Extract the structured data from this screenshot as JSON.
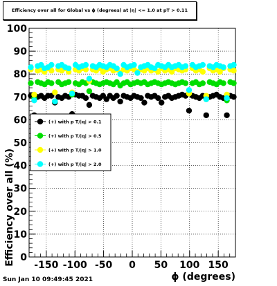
{
  "chart_data": {
    "type": "scatter",
    "title": "Efficiency over all for Global vs ϕ (degrees) at |η| <= 1.0 at pT > 0.11",
    "xlabel": "ϕ (degrees)",
    "ylabel": "Efficiency over all (%)",
    "xlim": [
      -180,
      180
    ],
    "ylim": [
      0,
      100
    ],
    "xticks": [
      "-150",
      "-100",
      "-50",
      "0",
      "50",
      "100",
      "150"
    ],
    "xtick_values": [
      -150,
      -100,
      -50,
      0,
      50,
      100,
      150
    ],
    "yticks": [
      "0",
      "10",
      "20",
      "30",
      "40",
      "50",
      "60",
      "70",
      "80",
      "90",
      "100"
    ],
    "ytick_values": [
      0,
      10,
      20,
      30,
      40,
      50,
      60,
      70,
      80,
      90,
      100
    ],
    "grid": true,
    "legend_position": "left-middle",
    "x": [
      -177,
      -171,
      -165,
      -159,
      -153,
      -147,
      -141,
      -135,
      -129,
      -123,
      -117,
      -111,
      -105,
      -99,
      -93,
      -87,
      -81,
      -75,
      -69,
      -63,
      -57,
      -51,
      -45,
      -39,
      -33,
      -27,
      -21,
      -15,
      -9,
      -3,
      3,
      9,
      15,
      21,
      27,
      33,
      39,
      45,
      51,
      57,
      63,
      69,
      75,
      81,
      87,
      93,
      99,
      105,
      111,
      117,
      123,
      129,
      135,
      141,
      147,
      153,
      159,
      165,
      171,
      177
    ],
    "series": [
      {
        "name": "(+) with p T/|q| > 0.1",
        "color": "#000000",
        "values": [
          70.5,
          62.0,
          70.0,
          70.5,
          69.5,
          70.5,
          70.5,
          67.5,
          70.0,
          69.5,
          70.5,
          70.0,
          62.5,
          71.0,
          70.5,
          70.5,
          69.5,
          66.5,
          70.5,
          70.0,
          69.5,
          70.5,
          69.0,
          70.5,
          69.5,
          70.5,
          68.0,
          70.5,
          70.0,
          69.5,
          70.5,
          70.0,
          69.5,
          67.5,
          70.5,
          70.0,
          70.5,
          69.5,
          67.5,
          70.0,
          70.5,
          69.5,
          70.0,
          70.5,
          71.0,
          70.5,
          64.0,
          70.5,
          70.0,
          69.5,
          70.5,
          62.0,
          70.0,
          70.5,
          71.0,
          70.0,
          69.5,
          62.0,
          70.5,
          70.0
        ]
      },
      {
        "name": "(+) with p T/|q| > 0.5",
        "color": "#00dd00",
        "values": [
          76.0,
          69.5,
          76.5,
          76.0,
          75.5,
          76.5,
          76.0,
          68.0,
          76.5,
          75.5,
          76.0,
          76.5,
          71.0,
          76.0,
          75.5,
          76.5,
          76.0,
          72.5,
          76.5,
          76.0,
          75.5,
          76.0,
          76.5,
          76.0,
          75.5,
          76.5,
          75.0,
          76.0,
          76.5,
          75.5,
          76.0,
          76.5,
          76.0,
          76.5,
          75.5,
          76.0,
          76.5,
          76.0,
          75.5,
          76.0,
          76.5,
          76.0,
          75.5,
          76.0,
          76.5,
          76.0,
          71.5,
          76.0,
          76.5,
          75.5,
          76.0,
          69.0,
          76.5,
          76.0,
          75.5,
          76.5,
          76.0,
          68.5,
          76.5,
          76.0
        ]
      },
      {
        "name": "(+) with p T/|q| > 1.0",
        "color": "#ffff00",
        "values": [
          82.0,
          71.0,
          81.5,
          82.0,
          81.0,
          82.5,
          81.5,
          72.0,
          82.0,
          81.5,
          82.5,
          81.0,
          72.0,
          82.0,
          81.5,
          82.5,
          82.0,
          77.0,
          82.0,
          81.5,
          82.5,
          81.0,
          82.0,
          82.5,
          81.5,
          82.0,
          80.5,
          82.0,
          81.5,
          82.5,
          82.0,
          81.0,
          82.0,
          81.5,
          82.5,
          81.5,
          82.0,
          81.0,
          82.5,
          81.5,
          82.0,
          81.0,
          82.5,
          82.0,
          81.5,
          82.0,
          71.5,
          82.5,
          81.5,
          82.0,
          81.0,
          70.5,
          82.5,
          81.5,
          82.0,
          81.0,
          82.5,
          71.0,
          82.0,
          81.5
        ]
      },
      {
        "name": "(+) with p T/|q| > 2.0",
        "color": "#00ffff",
        "values": [
          83.0,
          68.5,
          83.5,
          84.0,
          82.5,
          83.0,
          84.0,
          68.0,
          83.5,
          84.0,
          83.0,
          82.5,
          71.5,
          84.0,
          83.0,
          83.5,
          84.0,
          78.0,
          83.5,
          83.0,
          84.0,
          83.5,
          83.0,
          84.0,
          83.5,
          82.5,
          80.0,
          84.0,
          83.0,
          83.5,
          84.0,
          80.5,
          83.0,
          83.5,
          84.0,
          83.0,
          82.5,
          84.0,
          83.5,
          83.0,
          84.0,
          83.0,
          83.5,
          84.0,
          83.0,
          83.5,
          73.0,
          84.0,
          83.0,
          83.5,
          84.0,
          69.0,
          83.5,
          83.0,
          84.0,
          83.5,
          83.0,
          69.5,
          83.5,
          84.0
        ]
      }
    ]
  },
  "footer": {
    "date": "Sun Jan 10 09:49:45 2021"
  }
}
